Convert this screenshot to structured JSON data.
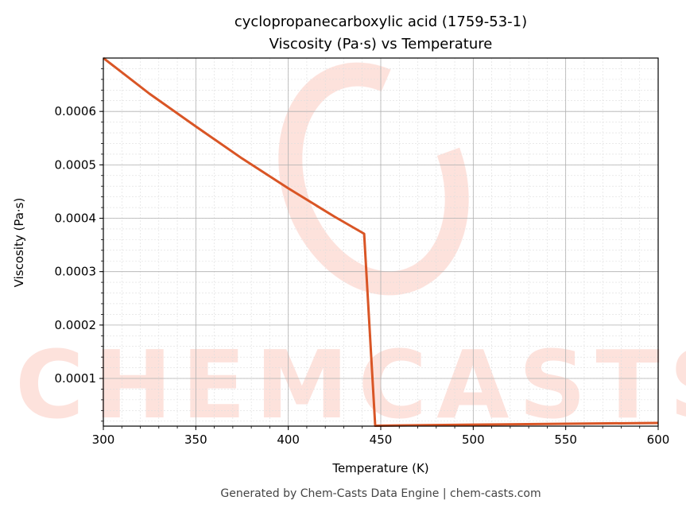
{
  "chart_data": {
    "type": "line",
    "title": "cyclopropanecarboxylic acid (1759-53-1)",
    "subtitle": "Viscosity (Pa·s) vs Temperature",
    "xlabel": "Temperature (K)",
    "ylabel": "Viscosity (Pa·s)",
    "xlim": [
      300,
      600
    ],
    "ylim": [
      1.07e-05,
      0.0007
    ],
    "xticks": [
      300,
      350,
      400,
      450,
      500,
      550,
      600
    ],
    "xtick_labels": [
      "300",
      "350",
      "400",
      "450",
      "500",
      "550",
      "600"
    ],
    "yticks": [
      0.0001,
      0.0002,
      0.0003,
      0.0004,
      0.0005,
      0.0006
    ],
    "ytick_labels": [
      "0.0001",
      "0.0002",
      "0.0003",
      "0.0004",
      "0.0005",
      "0.0006"
    ],
    "grid": true,
    "series": [
      {
        "name": "Viscosity",
        "color": "#d95525",
        "x": [
          300,
          325,
          350,
          375,
          400,
          425,
          441,
          447,
          500,
          550,
          600
        ],
        "y": [
          0.0007,
          0.000633,
          0.000572,
          0.000512,
          0.000456,
          0.000403,
          0.000371,
          1.15e-05,
          1.35e-05,
          1.52e-05,
          1.67e-05
        ]
      }
    ]
  },
  "watermark": "CHEMCASTS",
  "footer": "Generated by Chem-Casts Data Engine | chem-casts.com"
}
